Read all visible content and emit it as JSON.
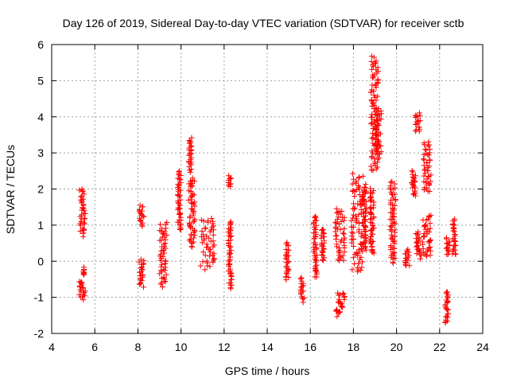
{
  "chart_data": {
    "type": "scatter",
    "title": "Day 126 of 2019, Sidereal Day-to-day VTEC variation (SDTVAR) for receiver sctb",
    "xlabel": "GPS time / hours",
    "ylabel": "SDTVAR / TECUs",
    "xlim": [
      4,
      24
    ],
    "ylim": [
      -2,
      6
    ],
    "xticks": [
      4,
      6,
      8,
      10,
      12,
      14,
      16,
      18,
      20,
      22,
      24
    ],
    "yticks": [
      -2,
      -1,
      0,
      1,
      2,
      3,
      4,
      5,
      6
    ],
    "grid": true,
    "marker": "+",
    "color": "#ff0000",
    "series": [
      {
        "name": "SDTVAR",
        "clusters": [
          {
            "x": [
              5.28,
              5.56
            ],
            "y": [
              0.7,
              2.0
            ]
          },
          {
            "x": [
              5.28,
              5.56
            ],
            "y": [
              -1.05,
              -0.55
            ]
          },
          {
            "x": [
              5.45,
              5.52
            ],
            "y": [
              -0.4,
              -0.2
            ]
          },
          {
            "x": [
              8.05,
              8.28
            ],
            "y": [
              1.0,
              1.55
            ]
          },
          {
            "x": [
              8.05,
              8.28
            ],
            "y": [
              -0.7,
              0.05
            ]
          },
          {
            "x": [
              9.0,
              9.35
            ],
            "y": [
              -0.7,
              1.05
            ]
          },
          {
            "x": [
              9.85,
              10.0
            ],
            "y": [
              0.85,
              2.5
            ]
          },
          {
            "x": [
              10.35,
              10.65
            ],
            "y": [
              0.4,
              2.3
            ]
          },
          {
            "x": [
              10.35,
              10.5
            ],
            "y": [
              2.5,
              3.4
            ]
          },
          {
            "x": [
              10.9,
              11.55
            ],
            "y": [
              -0.2,
              1.2
            ]
          },
          {
            "x": [
              12.2,
              12.35
            ],
            "y": [
              -0.75,
              1.1
            ]
          },
          {
            "x": [
              12.2,
              12.35
            ],
            "y": [
              2.1,
              2.35
            ]
          },
          {
            "x": [
              14.85,
              15.0
            ],
            "y": [
              -0.5,
              0.5
            ]
          },
          {
            "x": [
              15.55,
              15.72
            ],
            "y": [
              -1.1,
              -0.45
            ]
          },
          {
            "x": [
              16.15,
              16.3
            ],
            "y": [
              -0.45,
              1.25
            ]
          },
          {
            "x": [
              16.5,
              16.65
            ],
            "y": [
              0.0,
              0.9
            ]
          },
          {
            "x": [
              17.2,
              17.6
            ],
            "y": [
              -1.5,
              -0.85
            ]
          },
          {
            "x": [
              17.15,
              17.6
            ],
            "y": [
              0.0,
              1.45
            ]
          },
          {
            "x": [
              17.9,
              18.45
            ],
            "y": [
              -0.3,
              2.4
            ]
          },
          {
            "x": [
              18.4,
              18.6
            ],
            "y": [
              0.3,
              2.1
            ]
          },
          {
            "x": [
              18.75,
              18.95
            ],
            "y": [
              0.2,
              2.0
            ]
          },
          {
            "x": [
              18.8,
              19.15
            ],
            "y": [
              2.5,
              5.65
            ]
          },
          {
            "x": [
              19.0,
              19.3
            ],
            "y": [
              2.9,
              4.2
            ]
          },
          {
            "x": [
              19.7,
              19.95
            ],
            "y": [
              -0.05,
              2.2
            ]
          },
          {
            "x": [
              20.4,
              20.6
            ],
            "y": [
              -0.15,
              0.3
            ]
          },
          {
            "x": [
              20.7,
              20.9
            ],
            "y": [
              1.8,
              2.5
            ]
          },
          {
            "x": [
              20.85,
              21.1
            ],
            "y": [
              3.6,
              4.1
            ]
          },
          {
            "x": [
              20.9,
              21.15
            ],
            "y": [
              0.1,
              0.8
            ]
          },
          {
            "x": [
              21.25,
              21.6
            ],
            "y": [
              1.9,
              3.3
            ]
          },
          {
            "x": [
              21.2,
              21.6
            ],
            "y": [
              0.1,
              1.3
            ]
          },
          {
            "x": [
              22.25,
              22.4
            ],
            "y": [
              -1.7,
              -0.85
            ]
          },
          {
            "x": [
              22.3,
              22.45
            ],
            "y": [
              0.2,
              0.65
            ]
          },
          {
            "x": [
              22.6,
              22.75
            ],
            "y": [
              0.15,
              1.15
            ]
          }
        ]
      }
    ]
  }
}
